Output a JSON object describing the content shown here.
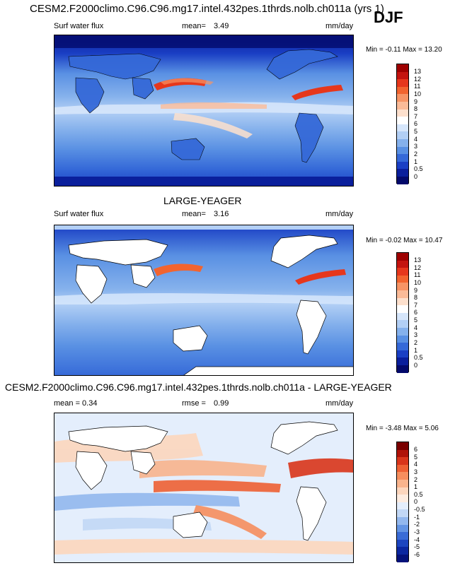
{
  "title": "CESM2.F2000climo.C96.C96.mg17.intel.432pes.1thrds.nolb.ch011a (yrs 1)",
  "season": "DJF",
  "panels": [
    {
      "heading": "",
      "variable": "Surf water flux",
      "stat_label": "mean=",
      "stat_value": "3.49",
      "units": "mm/day",
      "minmax": "Min = -0.11 Max = 13.20",
      "palette": "sequential",
      "levels": [
        "13",
        "12",
        "11",
        "10",
        "9",
        "8",
        "7",
        "6",
        "5",
        "4",
        "3",
        "2",
        "1",
        "0.5",
        "0"
      ],
      "colors": [
        "#9e0000",
        "#c4140f",
        "#e6371c",
        "#f2642f",
        "#f79465",
        "#fbbb98",
        "#fde0cd",
        "#ffffff",
        "#d6e6fb",
        "#b2cff5",
        "#85b1ec",
        "#5990e3",
        "#3569d8",
        "#1a3fc4",
        "#0a1f9c",
        "#030a6b"
      ],
      "land_shown": false
    },
    {
      "heading": "LARGE-YEAGER",
      "variable": "Surf water flux",
      "stat_label": "mean=",
      "stat_value": "3.16",
      "units": "mm/day",
      "minmax": "Min = -0.02 Max = 10.47",
      "palette": "sequential",
      "levels": [
        "13",
        "12",
        "11",
        "10",
        "9",
        "8",
        "7",
        "6",
        "5",
        "4",
        "3",
        "2",
        "1",
        "0.5",
        "0"
      ],
      "colors": [
        "#9e0000",
        "#c4140f",
        "#e6371c",
        "#f2642f",
        "#f79465",
        "#fbbb98",
        "#fde0cd",
        "#ffffff",
        "#d6e6fb",
        "#b2cff5",
        "#85b1ec",
        "#5990e3",
        "#3569d8",
        "#1a3fc4",
        "#0a1f9c",
        "#030a6b"
      ],
      "land_shown": true
    },
    {
      "heading": "CESM2.F2000climo.C96.C96.mg17.intel.432pes.1thrds.nolb.ch011a - LARGE-YEAGER",
      "variable": "mean =   0.34",
      "stat_label": "rmse =",
      "stat_value": "0.99",
      "units": "mm/day",
      "minmax": "Min = -3.48 Max =  5.06",
      "palette": "diverging",
      "levels": [
        "6",
        "5",
        "4",
        "3",
        "2",
        "1",
        "0.5",
        "0",
        "-0.5",
        "-1",
        "-2",
        "-3",
        "-4",
        "-5",
        "-6"
      ],
      "colors": [
        "#7a0000",
        "#b01208",
        "#d9351b",
        "#ee6134",
        "#f68e5e",
        "#f9b48d",
        "#fcd6bd",
        "#fdece0",
        "#e4eefc",
        "#c2d8f6",
        "#93b8ee",
        "#6495e4",
        "#3a6cd6",
        "#1c45c0",
        "#0b27a0",
        "#04127a"
      ],
      "land_shown": true
    }
  ],
  "chart_data": [
    {
      "type": "heatmap",
      "title": "CESM2.F2000climo.C96.C96.mg17.intel.432pes.1thrds.nolb.ch011a (yrs 1)",
      "subtitle": "DJF",
      "variable": "Surf water flux",
      "units": "mm/day",
      "mean": 3.49,
      "min": -0.11,
      "max": 13.2,
      "colorbar_levels": [
        0,
        0.5,
        1,
        2,
        3,
        4,
        5,
        6,
        7,
        8,
        9,
        10,
        11,
        12,
        13
      ],
      "colormap": "blue-white-red",
      "projection": "global lat-lon"
    },
    {
      "type": "heatmap",
      "title": "LARGE-YEAGER",
      "variable": "Surf water flux",
      "units": "mm/day",
      "mean": 3.16,
      "min": -0.02,
      "max": 10.47,
      "colorbar_levels": [
        0,
        0.5,
        1,
        2,
        3,
        4,
        5,
        6,
        7,
        8,
        9,
        10,
        11,
        12,
        13
      ],
      "colormap": "blue-white-red",
      "land_masked": true
    },
    {
      "type": "heatmap",
      "title": "CESM2.F2000climo.C96.C96.mg17.intel.432pes.1thrds.nolb.ch011a - LARGE-YEAGER",
      "units": "mm/day",
      "mean": 0.34,
      "rmse": 0.99,
      "min": -3.48,
      "max": 5.06,
      "colorbar_levels": [
        -6,
        -5,
        -4,
        -3,
        -2,
        -1,
        -0.5,
        0,
        0.5,
        1,
        2,
        3,
        4,
        5,
        6
      ],
      "colormap": "diverging blue-red",
      "land_masked": true
    }
  ]
}
